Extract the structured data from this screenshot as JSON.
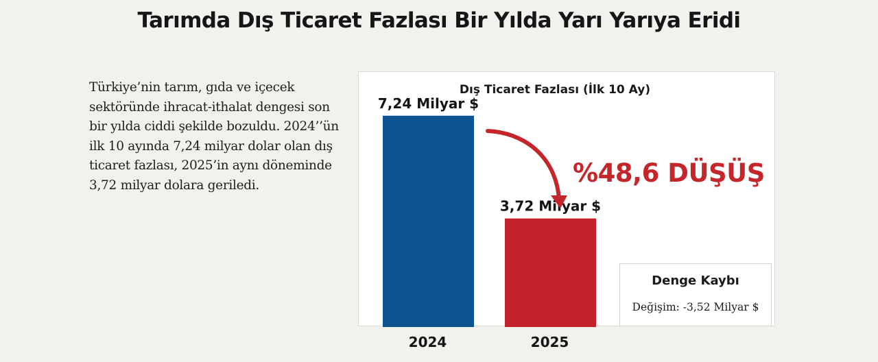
{
  "headline": "Tarımda Dış Ticaret Fazlası Bir Yılda Yarı Yarıya Eridi",
  "body_text": "Türkiye’nin tarım, gıda ve içecek sektöründe ihracat-ithalat dengesi son bir yılda ciddi şekilde bozuldu. 2024’’ün ilk 10 ayında 7,24 milyar dolar olan dış ticaret fazlası, 2025’in aynı döneminde 3,72 milyar dolara geriledi.",
  "chart_data": {
    "type": "bar",
    "title": "Dış Ticaret Fazlası (İlk 10 Ay)",
    "categories": [
      "2024",
      "2025"
    ],
    "values": [
      7.24,
      3.72
    ],
    "value_labels": [
      "7,24 Milyar $",
      "3,72 Milyar $"
    ],
    "bar_colors": [
      "#0d5391",
      "#c4222a"
    ],
    "ylim": [
      0,
      8.55
    ],
    "grid": false,
    "legend": "none",
    "xlabel": "",
    "ylabel": "",
    "annotation": {
      "text": "%48,6 DÜŞÜŞ",
      "color": "#c4262b"
    }
  },
  "info_box": {
    "title": "Denge Kaybı",
    "detail": "Değişim: -3,52 Milyar $"
  }
}
